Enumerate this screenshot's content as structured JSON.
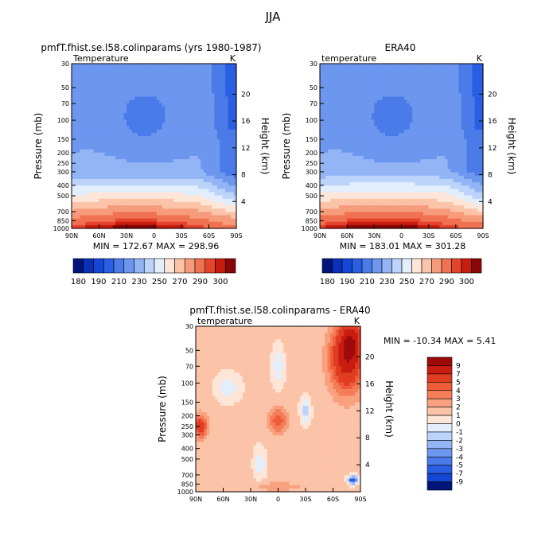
{
  "page": {
    "title": "JJA"
  },
  "chart_data": [
    {
      "type": "heatmap",
      "panel": "top-left",
      "title": "pmfT.fhist.se.l58.colinparams (yrs 1980-1987)",
      "field_label": "Temperature",
      "units": "K",
      "ylabel": "Pressure (mb)",
      "ylabel_right": "Height (km)",
      "x_ticks": [
        "90N",
        "60N",
        "30N",
        "0",
        "30S",
        "60S",
        "90S"
      ],
      "y_ticks": [
        30,
        50,
        70,
        100,
        150,
        200,
        250,
        300,
        400,
        500,
        700,
        850,
        1000
      ],
      "height_ticks": [
        4,
        8,
        12,
        16,
        20
      ],
      "stats": "MIN = 172.67   MAX = 298.96",
      "min": 172.67,
      "max": 298.96,
      "colorbar_labels": [
        "180",
        "190",
        "210",
        "230",
        "250",
        "270",
        "290",
        "300"
      ],
      "contour_levels": [
        180,
        185,
        190,
        200,
        210,
        220,
        230,
        240,
        250,
        260,
        270,
        280,
        290,
        295,
        300
      ],
      "colorbar_colors": [
        "#00157a",
        "#0a2fb8",
        "#1447d6",
        "#2a5fe4",
        "#4a7be8",
        "#6d97ef",
        "#93b4f5",
        "#bcd3fa",
        "#e3eefd",
        "#fde6d8",
        "#fbc3a8",
        "#f69c7c",
        "#f07252",
        "#e4442c",
        "#c81c10",
        "#8a0505"
      ]
    },
    {
      "type": "heatmap",
      "panel": "top-right",
      "title": "ERA40",
      "field_label": "temperature",
      "units": "K",
      "ylabel": "Pressure (mb)",
      "ylabel_right": "Height (km)",
      "x_ticks": [
        "90N",
        "60N",
        "30N",
        "0",
        "30S",
        "60S",
        "90S"
      ],
      "y_ticks": [
        30,
        50,
        70,
        100,
        150,
        200,
        250,
        300,
        400,
        500,
        700,
        850,
        1000
      ],
      "height_ticks": [
        4,
        8,
        12,
        16,
        20
      ],
      "stats": "MIN = 183.01   MAX = 301.28",
      "min": 183.01,
      "max": 301.28,
      "colorbar_labels": [
        "180",
        "190",
        "210",
        "230",
        "250",
        "270",
        "290",
        "300"
      ]
    },
    {
      "type": "heatmap",
      "panel": "bottom",
      "title": "pmfT.fhist.se.l58.colinparams - ERA40",
      "field_label": "temperature",
      "units": "K",
      "ylabel": "Pressure (mb)",
      "ylabel_right": "Height (km)",
      "x_ticks": [
        "90N",
        "60N",
        "30N",
        "0",
        "30S",
        "60S",
        "90S"
      ],
      "y_ticks": [
        30,
        50,
        70,
        100,
        150,
        200,
        250,
        300,
        400,
        500,
        700,
        850,
        1000
      ],
      "height_ticks": [
        4,
        8,
        12,
        16,
        20
      ],
      "stats": "MIN = -10.34   MAX =    5.41",
      "min": -10.34,
      "max": 5.41,
      "colorbar_labels": [
        "9",
        "7",
        "5",
        "4",
        "3",
        "2",
        "1",
        "0",
        "-1",
        "-2",
        "-3",
        "-4",
        "-5",
        "-7",
        "-9"
      ],
      "colorbar_colors": [
        "#9e0a0a",
        "#c81c10",
        "#e03c22",
        "#ef5c3a",
        "#f57d58",
        "#f9a07e",
        "#fbc3a8",
        "#fde6d8",
        "#e3eefd",
        "#bcd3fa",
        "#93b4f5",
        "#6d97ef",
        "#4a7be8",
        "#2a5fe4",
        "#1447d6",
        "#00157a"
      ]
    }
  ]
}
